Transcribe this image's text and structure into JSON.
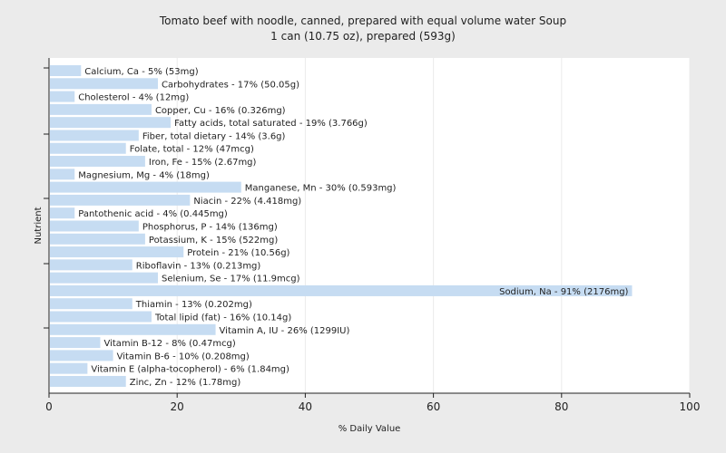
{
  "chart_data": {
    "type": "bar",
    "orientation": "horizontal",
    "title": "Tomato beef with noodle, canned, prepared with equal volume water Soup",
    "subtitle": "1 can (10.75 oz), prepared (593g)",
    "xlabel": "% Daily Value",
    "ylabel": "Nutrient",
    "xlim": [
      0,
      100
    ],
    "xticks": [
      0,
      20,
      40,
      60,
      80,
      100
    ],
    "grid": "vertical",
    "bar_color": "#c6dcf2",
    "categories": [
      "Calcium, Ca",
      "Carbohydrates",
      "Cholesterol",
      "Copper, Cu",
      "Fatty acids, total saturated",
      "Fiber, total dietary",
      "Folate, total",
      "Iron, Fe",
      "Magnesium, Mg",
      "Manganese, Mn",
      "Niacin",
      "Pantothenic acid",
      "Phosphorus, P",
      "Potassium, K",
      "Protein",
      "Riboflavin",
      "Selenium, Se",
      "Sodium, Na",
      "Thiamin",
      "Total lipid (fat)",
      "Vitamin A, IU",
      "Vitamin B-12",
      "Vitamin B-6",
      "Vitamin E (alpha-tocopherol)",
      "Zinc, Zn"
    ],
    "values": [
      5,
      17,
      4,
      16,
      19,
      14,
      12,
      15,
      4,
      30,
      22,
      4,
      14,
      15,
      21,
      13,
      17,
      91,
      13,
      16,
      26,
      8,
      10,
      6,
      12
    ],
    "labels": [
      "Calcium, Ca - 5% (53mg)",
      "Carbohydrates - 17% (50.05g)",
      "Cholesterol - 4% (12mg)",
      "Copper, Cu - 16% (0.326mg)",
      "Fatty acids, total saturated - 19% (3.766g)",
      "Fiber, total dietary - 14% (3.6g)",
      "Folate, total - 12% (47mcg)",
      "Iron, Fe - 15% (2.67mg)",
      "Magnesium, Mg - 4% (18mg)",
      "Manganese, Mn - 30% (0.593mg)",
      "Niacin - 22% (4.418mg)",
      "Pantothenic acid - 4% (0.445mg)",
      "Phosphorus, P - 14% (136mg)",
      "Potassium, K - 15% (522mg)",
      "Protein - 21% (10.56g)",
      "Riboflavin - 13% (0.213mg)",
      "Selenium, Se - 17% (11.9mcg)",
      "Sodium, Na - 91% (2176mg)",
      "Thiamin - 13% (0.202mg)",
      "Total lipid (fat) - 16% (10.14g)",
      "Vitamin A, IU - 26% (1299IU)",
      "Vitamin B-12 - 8% (0.47mcg)",
      "Vitamin B-6 - 10% (0.208mg)",
      "Vitamin E (alpha-tocopherol) - 6% (1.84mg)",
      "Zinc, Zn - 12% (1.78mg)"
    ]
  }
}
